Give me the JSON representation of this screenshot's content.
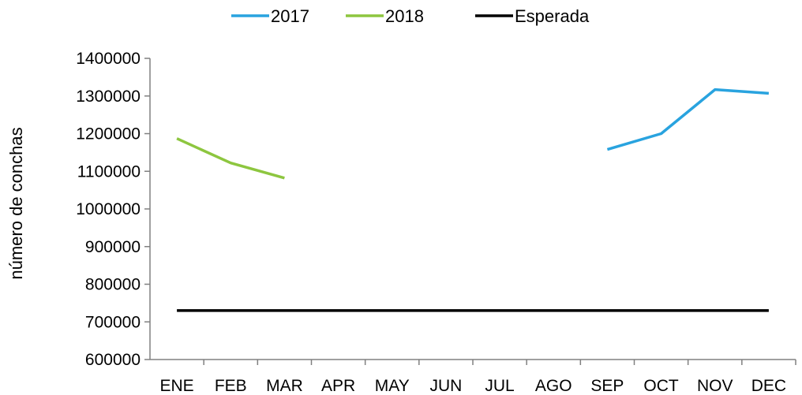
{
  "chart_data": {
    "type": "line",
    "title": "",
    "xlabel": "",
    "ylabel": "número de conchas",
    "categories": [
      "ENE",
      "FEB",
      "MAR",
      "APR",
      "MAY",
      "JUN",
      "JUL",
      "AGO",
      "SEP",
      "OCT",
      "NOV",
      "DEC"
    ],
    "ylim": [
      600000,
      1400000
    ],
    "yticks": [
      "600000",
      "700000",
      "800000",
      "900000",
      "1000000",
      "1100000",
      "1200000",
      "1300000",
      "1400000"
    ],
    "legend_position": "top",
    "grid": false,
    "series": [
      {
        "name": "2017",
        "color": "#29a3df",
        "values": [
          null,
          null,
          null,
          null,
          null,
          null,
          null,
          null,
          1158000,
          1200000,
          1317000,
          1307000
        ]
      },
      {
        "name": "2018",
        "color": "#8dc63f",
        "values": [
          1187000,
          1122000,
          1082000,
          null,
          null,
          null,
          null,
          null,
          null,
          null,
          null,
          null
        ]
      },
      {
        "name": "Esperada",
        "color": "#000000",
        "values": [
          730000,
          730000,
          730000,
          730000,
          730000,
          730000,
          730000,
          730000,
          730000,
          730000,
          730000,
          730000
        ]
      }
    ]
  }
}
